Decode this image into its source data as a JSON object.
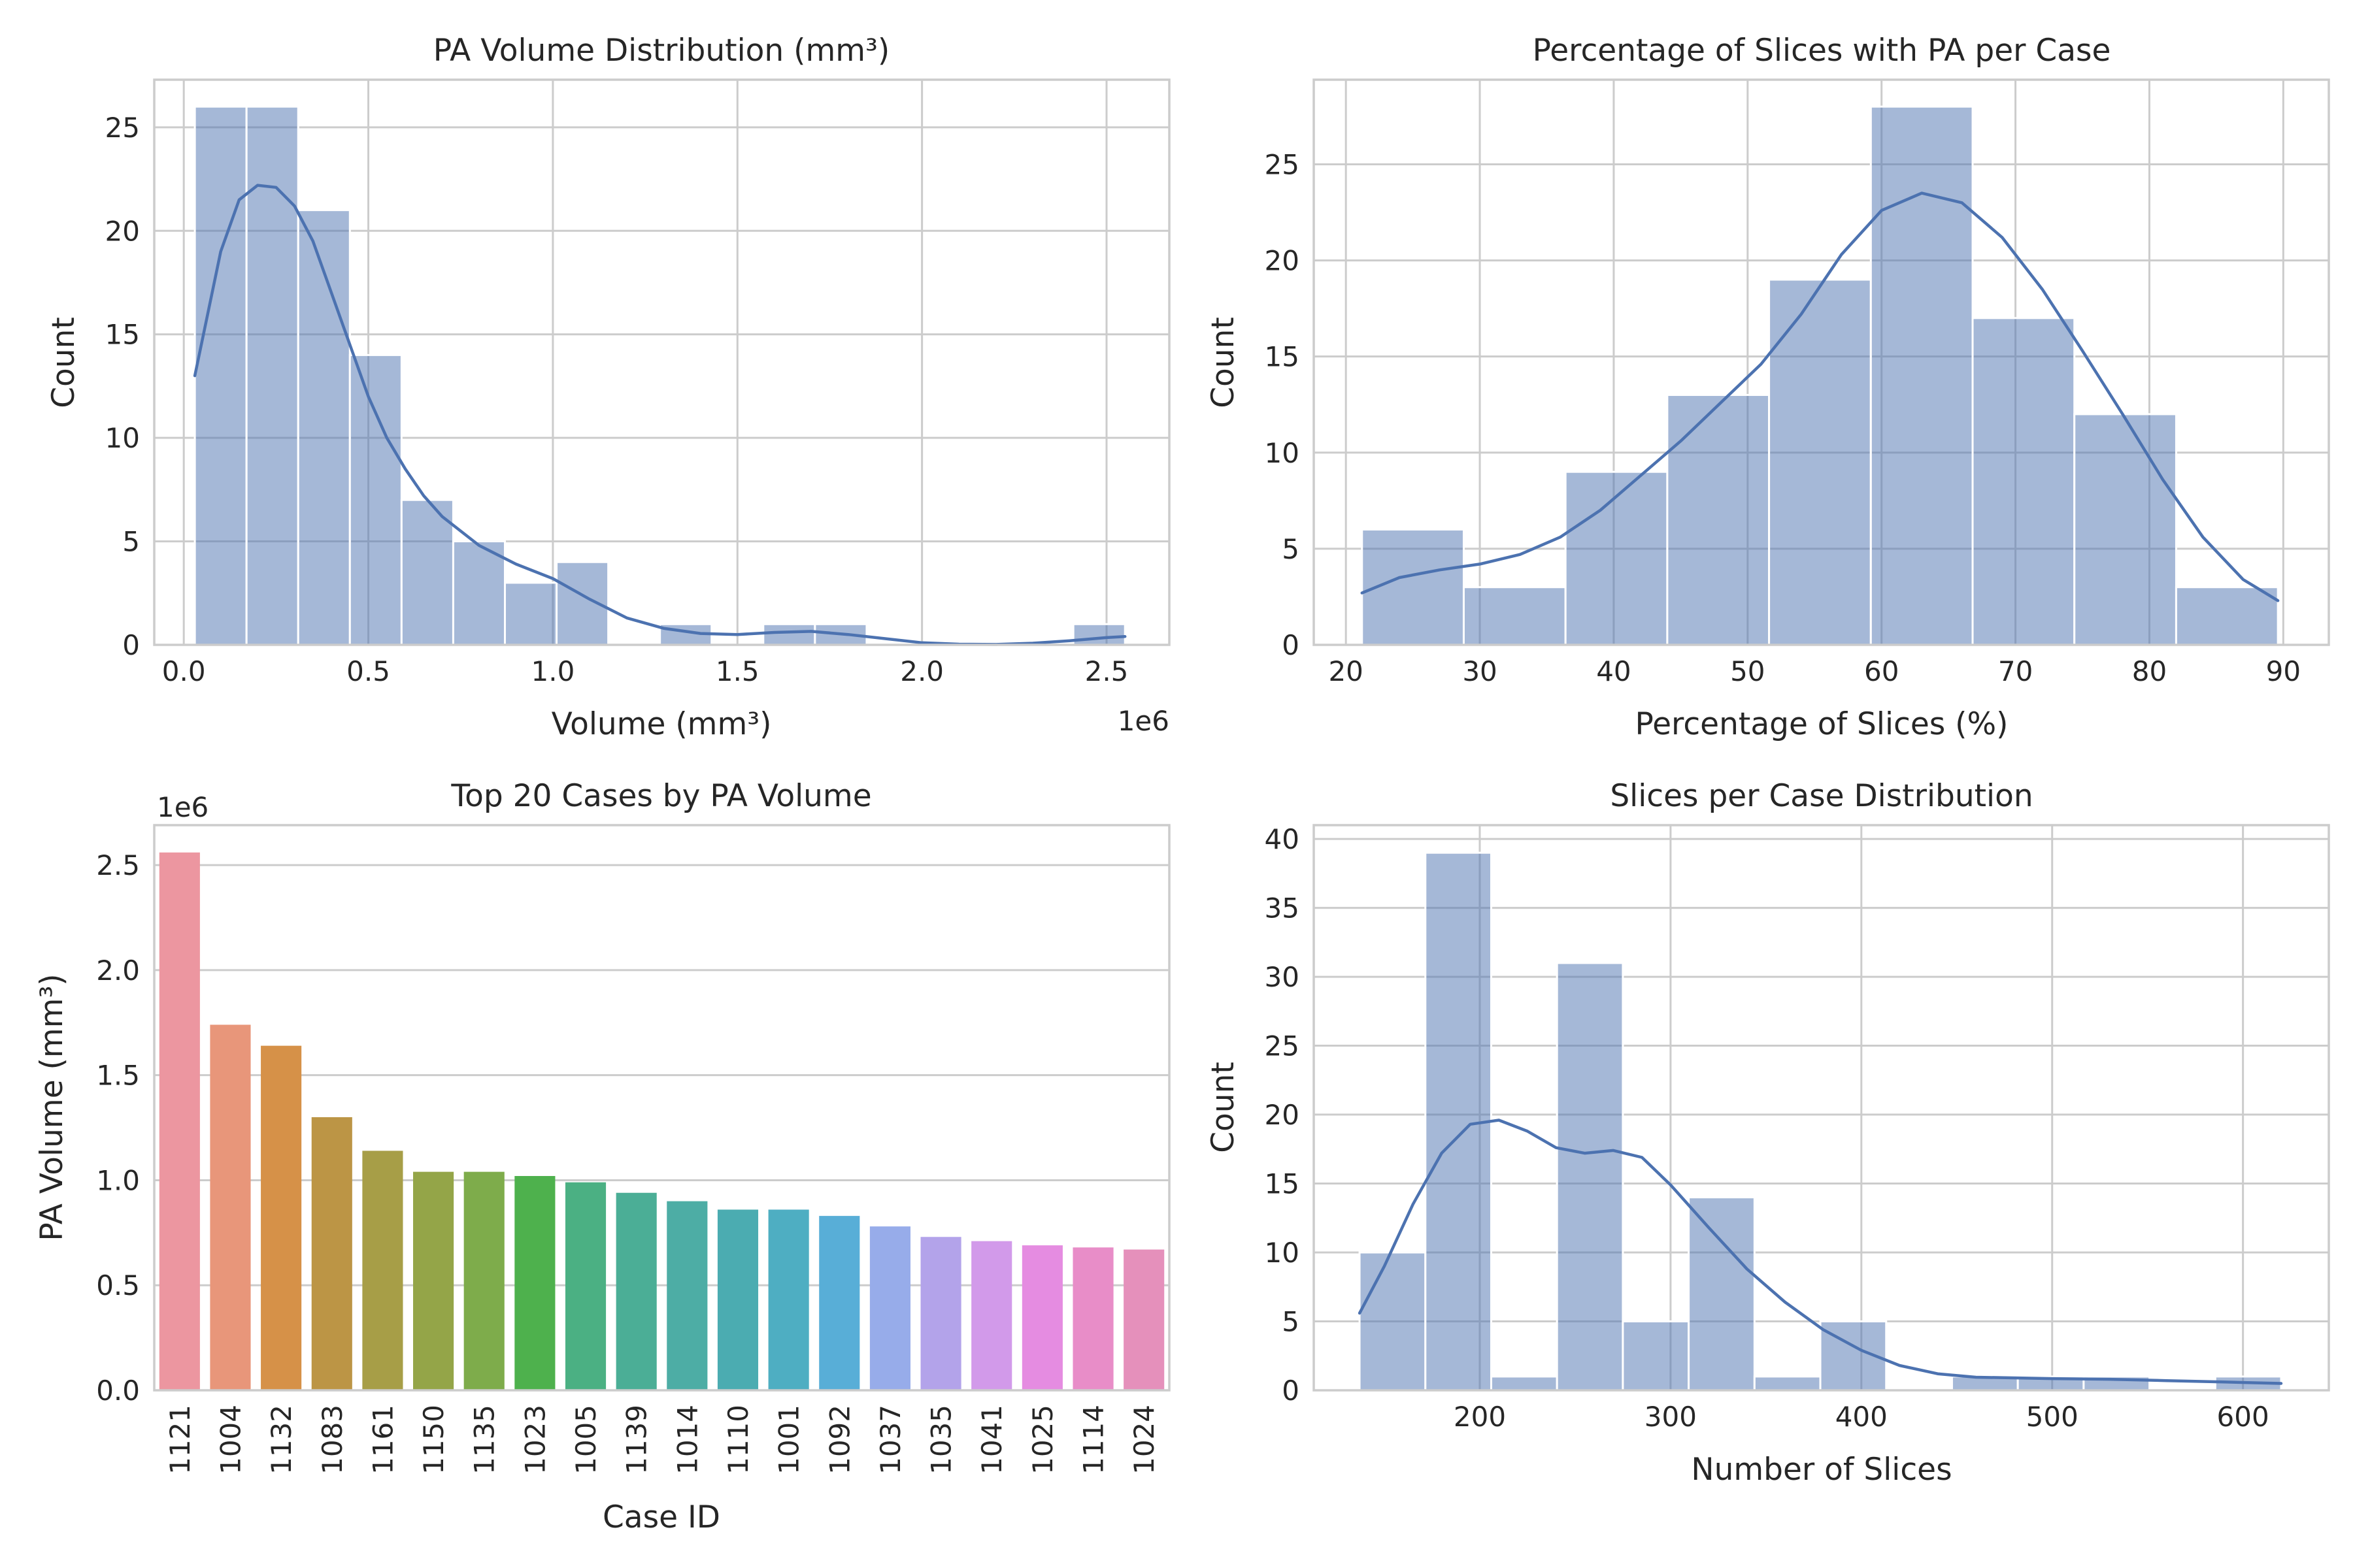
{
  "chart_data": [
    {
      "type": "histogram",
      "title": "PA Volume Distribution (mm³)",
      "xlabel": "Volume (mm³)",
      "ylabel": "Count",
      "x_offset_label": "1e6",
      "xlim": [
        -0.08,
        2.67
      ],
      "ylim": [
        0,
        27.3
      ],
      "xticks": [
        0.0,
        0.5,
        1.0,
        1.5,
        2.0,
        2.5
      ],
      "xtick_labels": [
        "0.0",
        "0.5",
        "1.0",
        "1.5",
        "2.0",
        "2.5"
      ],
      "yticks": [
        0,
        5,
        10,
        15,
        20,
        25
      ],
      "ytick_labels": [
        "0",
        "5",
        "10",
        "15",
        "20",
        "25"
      ],
      "bin_edges": [
        0.03,
        0.17,
        0.31,
        0.45,
        0.59,
        0.73,
        0.87,
        1.01,
        1.15,
        1.29,
        1.43,
        1.57,
        1.71,
        1.85,
        1.99,
        2.13,
        2.27,
        2.41,
        2.55
      ],
      "counts": [
        26,
        26,
        21,
        14,
        7,
        5,
        3,
        4,
        0,
        1,
        0,
        1,
        1,
        0,
        0,
        0,
        0,
        1
      ],
      "kde": {
        "x": [
          0.03,
          0.1,
          0.15,
          0.2,
          0.25,
          0.3,
          0.35,
          0.4,
          0.45,
          0.5,
          0.55,
          0.6,
          0.65,
          0.7,
          0.8,
          0.9,
          1.0,
          1.1,
          1.2,
          1.3,
          1.4,
          1.5,
          1.6,
          1.7,
          1.8,
          1.9,
          2.0,
          2.1,
          2.2,
          2.3,
          2.4,
          2.5,
          2.55
        ],
        "y": [
          13,
          19,
          21.5,
          22.2,
          22.1,
          21.2,
          19.5,
          17,
          14.5,
          12,
          10,
          8.5,
          7.2,
          6.2,
          4.8,
          3.9,
          3.2,
          2.2,
          1.3,
          0.8,
          0.55,
          0.5,
          0.6,
          0.65,
          0.5,
          0.3,
          0.1,
          0.03,
          0.02,
          0.08,
          0.2,
          0.35,
          0.4
        ]
      },
      "grid": true
    },
    {
      "type": "histogram",
      "title": "Percentage of Slices with PA per Case",
      "xlabel": "Percentage of Slices (%)",
      "ylabel": "Count",
      "xlim": [
        17.6,
        93.4
      ],
      "ylim": [
        0,
        29.4
      ],
      "xticks": [
        20,
        30,
        40,
        50,
        60,
        70,
        80,
        90
      ],
      "xtick_labels": [
        "20",
        "30",
        "40",
        "50",
        "60",
        "70",
        "80",
        "90"
      ],
      "yticks": [
        0,
        5,
        10,
        15,
        20,
        25
      ],
      "ytick_labels": [
        "0",
        "5",
        "10",
        "15",
        "20",
        "25"
      ],
      "bin_edges": [
        21.2,
        28.8,
        36.4,
        44.0,
        51.6,
        59.2,
        66.8,
        74.4,
        82.0,
        89.6
      ],
      "counts": [
        6,
        3,
        9,
        13,
        19,
        28,
        17,
        12,
        3
      ],
      "kde": {
        "x": [
          21.2,
          24,
          27,
          30,
          33,
          36,
          39,
          42,
          45,
          48,
          51,
          54,
          57,
          60,
          63,
          66,
          69,
          72,
          75,
          78,
          81,
          84,
          87,
          89.6
        ],
        "y": [
          2.7,
          3.5,
          3.9,
          4.2,
          4.7,
          5.6,
          7.0,
          8.8,
          10.6,
          12.6,
          14.6,
          17.2,
          20.3,
          22.6,
          23.5,
          23.0,
          21.2,
          18.5,
          15.3,
          12.0,
          8.6,
          5.6,
          3.4,
          2.3
        ]
      },
      "grid": true
    },
    {
      "type": "bar",
      "title": "Top 20 Cases by PA Volume",
      "xlabel": "Case ID",
      "ylabel": "PA Volume (mm³)",
      "y_offset_label": "1e6",
      "categories": [
        "1121",
        "1004",
        "1132",
        "1083",
        "1161",
        "1150",
        "1135",
        "1023",
        "1005",
        "1139",
        "1014",
        "1110",
        "1001",
        "1092",
        "1037",
        "1035",
        "1041",
        "1025",
        "1114",
        "1024"
      ],
      "values": [
        2.56,
        1.74,
        1.64,
        1.3,
        1.14,
        1.04,
        1.04,
        1.02,
        0.99,
        0.94,
        0.9,
        0.86,
        0.86,
        0.83,
        0.78,
        0.73,
        0.71,
        0.69,
        0.68,
        0.67
      ],
      "colors": [
        "#ec96a0",
        "#e8967a",
        "#d69148",
        "#bc9545",
        "#a79e47",
        "#94a548",
        "#7eac4b",
        "#4eb14d",
        "#4bb083",
        "#4bae96",
        "#4dada5",
        "#4bacb1",
        "#4eaec2",
        "#58aed7",
        "#97acea",
        "#b3a3ea",
        "#d29aea",
        "#e58ce1",
        "#e88dc8",
        "#e590bb"
      ],
      "ylim": [
        0,
        2.69
      ],
      "yticks": [
        0.0,
        0.5,
        1.0,
        1.5,
        2.0,
        2.5
      ],
      "ytick_labels": [
        "0.0",
        "0.5",
        "1.0",
        "1.5",
        "2.0",
        "2.5"
      ],
      "grid": true
    },
    {
      "type": "histogram",
      "title": "Slices per Case Distribution",
      "xlabel": "Number of Slices",
      "ylabel": "Count",
      "xlim": [
        113,
        645
      ],
      "ylim": [
        0,
        41
      ],
      "xticks": [
        200,
        300,
        400,
        500,
        600
      ],
      "xtick_labels": [
        "200",
        "300",
        "400",
        "500",
        "600"
      ],
      "yticks": [
        0,
        5,
        10,
        15,
        20,
        25,
        30,
        35,
        40
      ],
      "ytick_labels": [
        "0",
        "5",
        "10",
        "15",
        "20",
        "25",
        "30",
        "35",
        "40"
      ],
      "bin_edges": [
        137,
        171.5,
        206,
        240.5,
        275,
        309.5,
        344,
        378.5,
        413,
        447.5,
        482,
        516.5,
        551,
        585.5,
        620
      ],
      "counts": [
        10,
        39,
        1,
        31,
        5,
        14,
        1,
        5,
        0,
        1,
        1,
        1,
        0,
        1
      ],
      "kde": {
        "x": [
          137,
          150,
          165,
          180,
          195,
          210,
          225,
          240,
          255,
          270,
          285,
          300,
          320,
          340,
          360,
          380,
          400,
          420,
          440,
          460,
          480,
          500,
          530,
          560,
          590,
          620
        ],
        "y": [
          5.6,
          9.0,
          13.5,
          17.2,
          19.3,
          19.6,
          18.8,
          17.6,
          17.2,
          17.4,
          16.9,
          14.9,
          11.8,
          8.8,
          6.4,
          4.4,
          2.9,
          1.8,
          1.2,
          0.95,
          0.9,
          0.85,
          0.8,
          0.7,
          0.6,
          0.5
        ]
      },
      "grid": true
    }
  ]
}
